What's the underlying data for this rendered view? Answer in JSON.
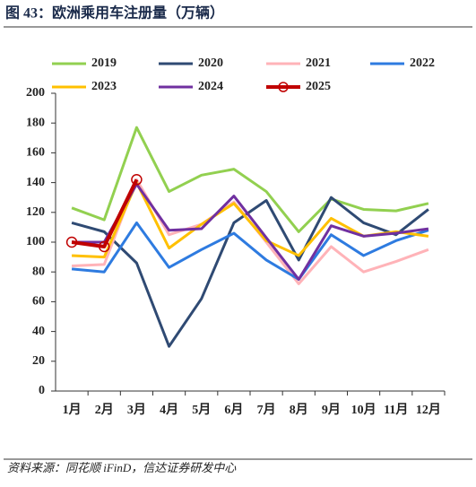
{
  "title": "图 43：欧洲乘用车注册量（万辆）",
  "source": "资料来源：同花顺 iFinD，信达证券研发中心",
  "chart_data": {
    "type": "line",
    "categories": [
      "1月",
      "2月",
      "3月",
      "4月",
      "5月",
      "6月",
      "7月",
      "8月",
      "9月",
      "10月",
      "11月",
      "12月"
    ],
    "ylim": [
      0,
      200
    ],
    "yticks": [
      0,
      20,
      40,
      60,
      80,
      100,
      120,
      140,
      160,
      180,
      200
    ],
    "grid": false,
    "legend": "top",
    "series": [
      {
        "name": "2019",
        "color": "#92d050",
        "values": [
          123,
          115,
          177,
          134,
          145,
          149,
          134,
          107,
          129,
          122,
          121,
          126
        ]
      },
      {
        "name": "2020",
        "color": "#2f4a73",
        "values": [
          113,
          107,
          86,
          30,
          62,
          113,
          128,
          88,
          130,
          113,
          105,
          122
        ]
      },
      {
        "name": "2021",
        "color": "#ffb3b8",
        "values": [
          84,
          85,
          142,
          105,
          112,
          127,
          100,
          72,
          97,
          80,
          87,
          95
        ]
      },
      {
        "name": "2022",
        "color": "#2e7be0",
        "values": [
          82,
          80,
          113,
          83,
          95,
          106,
          88,
          75,
          105,
          91,
          101,
          108
        ]
      },
      {
        "name": "2023",
        "color": "#ffc000",
        "values": [
          91,
          90,
          140,
          96,
          112,
          126,
          101,
          91,
          116,
          104,
          107,
          104
        ]
      },
      {
        "name": "2024",
        "color": "#7030a0",
        "values": [
          100,
          100,
          139,
          108,
          109,
          131,
          103,
          75,
          111,
          104,
          106,
          109
        ]
      },
      {
        "name": "2025",
        "color": "#c00000",
        "marker": "circle",
        "values": [
          100,
          97,
          142,
          null,
          null,
          null,
          null,
          null,
          null,
          null,
          null,
          null
        ]
      }
    ]
  }
}
